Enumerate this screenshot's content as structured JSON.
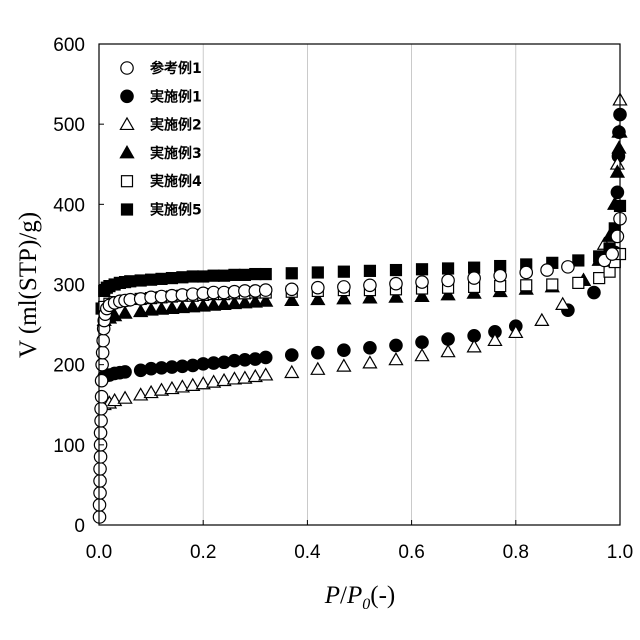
{
  "chart_data": {
    "type": "scatter",
    "title": "",
    "xlabel": "P/P0(-)",
    "xlabel_parts": {
      "p": "P",
      "slash": "/",
      "p0": "P",
      "sub": "0",
      "unit": "(-)"
    },
    "ylabel": "V (ml(STP)/g)",
    "xlim": [
      0,
      1.0
    ],
    "ylim": [
      0,
      600
    ],
    "x_ticks": [
      "0.0",
      "0.2",
      "0.4",
      "0.6",
      "0.8",
      "1.0"
    ],
    "y_ticks": [
      "0",
      "100",
      "200",
      "300",
      "400",
      "500",
      "600"
    ],
    "grid": "vertical",
    "legend_position": "top-left",
    "series": [
      {
        "name": "参考例1",
        "marker": "circle-open",
        "x": [
          0.001,
          0.001,
          0.002,
          0.002,
          0.002,
          0.003,
          0.003,
          0.003,
          0.004,
          0.004,
          0.005,
          0.005,
          0.006,
          0.007,
          0.008,
          0.009,
          0.01,
          0.012,
          0.015,
          0.02,
          0.03,
          0.04,
          0.05,
          0.06,
          0.08,
          0.1,
          0.12,
          0.14,
          0.16,
          0.18,
          0.2,
          0.22,
          0.24,
          0.26,
          0.28,
          0.3,
          0.32,
          0.37,
          0.42,
          0.47,
          0.52,
          0.57,
          0.62,
          0.67,
          0.72,
          0.77,
          0.82,
          0.86,
          0.9,
          0.97,
          0.985,
          0.995,
          1.0
        ],
        "y": [
          10,
          25,
          40,
          55,
          70,
          85,
          100,
          115,
          130,
          145,
          160,
          180,
          200,
          215,
          230,
          245,
          255,
          263,
          270,
          274,
          277,
          279,
          280,
          281,
          282,
          284,
          285,
          286,
          287,
          288,
          289,
          290,
          290,
          291,
          292,
          292,
          293,
          294,
          296,
          297,
          299,
          301,
          303,
          305,
          308,
          311,
          315,
          318,
          322,
          330,
          338,
          360,
          382
        ]
      },
      {
        "name": "実施例1",
        "marker": "circle-filled",
        "x": [
          0.01,
          0.02,
          0.03,
          0.04,
          0.05,
          0.08,
          0.1,
          0.12,
          0.14,
          0.16,
          0.18,
          0.2,
          0.22,
          0.24,
          0.26,
          0.28,
          0.3,
          0.32,
          0.37,
          0.42,
          0.47,
          0.52,
          0.57,
          0.62,
          0.67,
          0.72,
          0.76,
          0.8,
          0.9,
          0.95,
          0.99,
          0.995,
          0.997,
          0.998,
          1.0
        ],
        "y": [
          185,
          187,
          189,
          190,
          191,
          193,
          195,
          196,
          197,
          198,
          199,
          201,
          202,
          203,
          205,
          206,
          207,
          209,
          212,
          215,
          218,
          221,
          224,
          228,
          232,
          236,
          241,
          248,
          268,
          290,
          340,
          415,
          460,
          490,
          512
        ]
      },
      {
        "name": "実施例2",
        "marker": "triangle-open",
        "x": [
          0.01,
          0.02,
          0.03,
          0.05,
          0.08,
          0.1,
          0.12,
          0.14,
          0.16,
          0.18,
          0.2,
          0.22,
          0.24,
          0.26,
          0.28,
          0.3,
          0.32,
          0.37,
          0.42,
          0.47,
          0.52,
          0.57,
          0.62,
          0.67,
          0.72,
          0.76,
          0.8,
          0.85,
          0.89,
          0.93,
          0.97,
          0.99,
          0.995,
          0.998,
          1.0
        ],
        "y": [
          150,
          152,
          155,
          158,
          162,
          165,
          168,
          170,
          172,
          174,
          176,
          178,
          180,
          182,
          183,
          185,
          187,
          190,
          194,
          198,
          202,
          206,
          211,
          216,
          222,
          230,
          240,
          255,
          275,
          305,
          350,
          400,
          450,
          490,
          530
        ]
      },
      {
        "name": "実施例3",
        "marker": "triangle-filled",
        "x": [
          0.01,
          0.02,
          0.03,
          0.05,
          0.08,
          0.1,
          0.12,
          0.14,
          0.16,
          0.18,
          0.2,
          0.22,
          0.24,
          0.26,
          0.28,
          0.3,
          0.32,
          0.37,
          0.42,
          0.47,
          0.52,
          0.57,
          0.62,
          0.67,
          0.72,
          0.77,
          0.82,
          0.87,
          0.93,
          0.96,
          0.98,
          0.99,
          0.995,
          0.998,
          1.0
        ],
        "y": [
          255,
          258,
          261,
          264,
          266,
          268,
          269,
          270,
          271,
          272,
          273,
          274,
          275,
          276,
          277,
          278,
          279,
          280,
          281,
          282,
          283,
          284,
          285,
          287,
          289,
          291,
          294,
          297,
          305,
          330,
          360,
          400,
          440,
          470,
          490
        ]
      },
      {
        "name": "実施例4",
        "marker": "square-open",
        "x": [
          0.01,
          0.02,
          0.03,
          0.05,
          0.08,
          0.1,
          0.12,
          0.14,
          0.16,
          0.18,
          0.2,
          0.22,
          0.24,
          0.26,
          0.28,
          0.3,
          0.32,
          0.37,
          0.42,
          0.47,
          0.52,
          0.57,
          0.62,
          0.67,
          0.72,
          0.77,
          0.82,
          0.87,
          0.92,
          0.96,
          0.98,
          0.99,
          1.0
        ],
        "y": [
          272,
          276,
          278,
          280,
          282,
          283,
          284,
          285,
          286,
          286,
          287,
          288,
          288,
          289,
          289,
          290,
          290,
          291,
          292,
          293,
          293,
          294,
          295,
          296,
          297,
          298,
          299,
          300,
          302,
          308,
          316,
          328,
          338
        ]
      },
      {
        "name": "実施例5",
        "marker": "square-filled",
        "x": [
          0.005,
          0.01,
          0.015,
          0.02,
          0.03,
          0.04,
          0.05,
          0.06,
          0.08,
          0.1,
          0.12,
          0.14,
          0.16,
          0.18,
          0.2,
          0.22,
          0.24,
          0.26,
          0.28,
          0.3,
          0.32,
          0.37,
          0.42,
          0.47,
          0.52,
          0.57,
          0.62,
          0.67,
          0.72,
          0.77,
          0.82,
          0.87,
          0.92,
          0.96,
          0.98,
          0.99,
          1.0
        ],
        "y": [
          270,
          292,
          296,
          298,
          300,
          302,
          303,
          304,
          305,
          306,
          307,
          308,
          309,
          310,
          310,
          311,
          311,
          312,
          312,
          313,
          313,
          314,
          315,
          316,
          317,
          318,
          319,
          320,
          321,
          323,
          325,
          327,
          330,
          335,
          345,
          370,
          398
        ]
      }
    ]
  }
}
